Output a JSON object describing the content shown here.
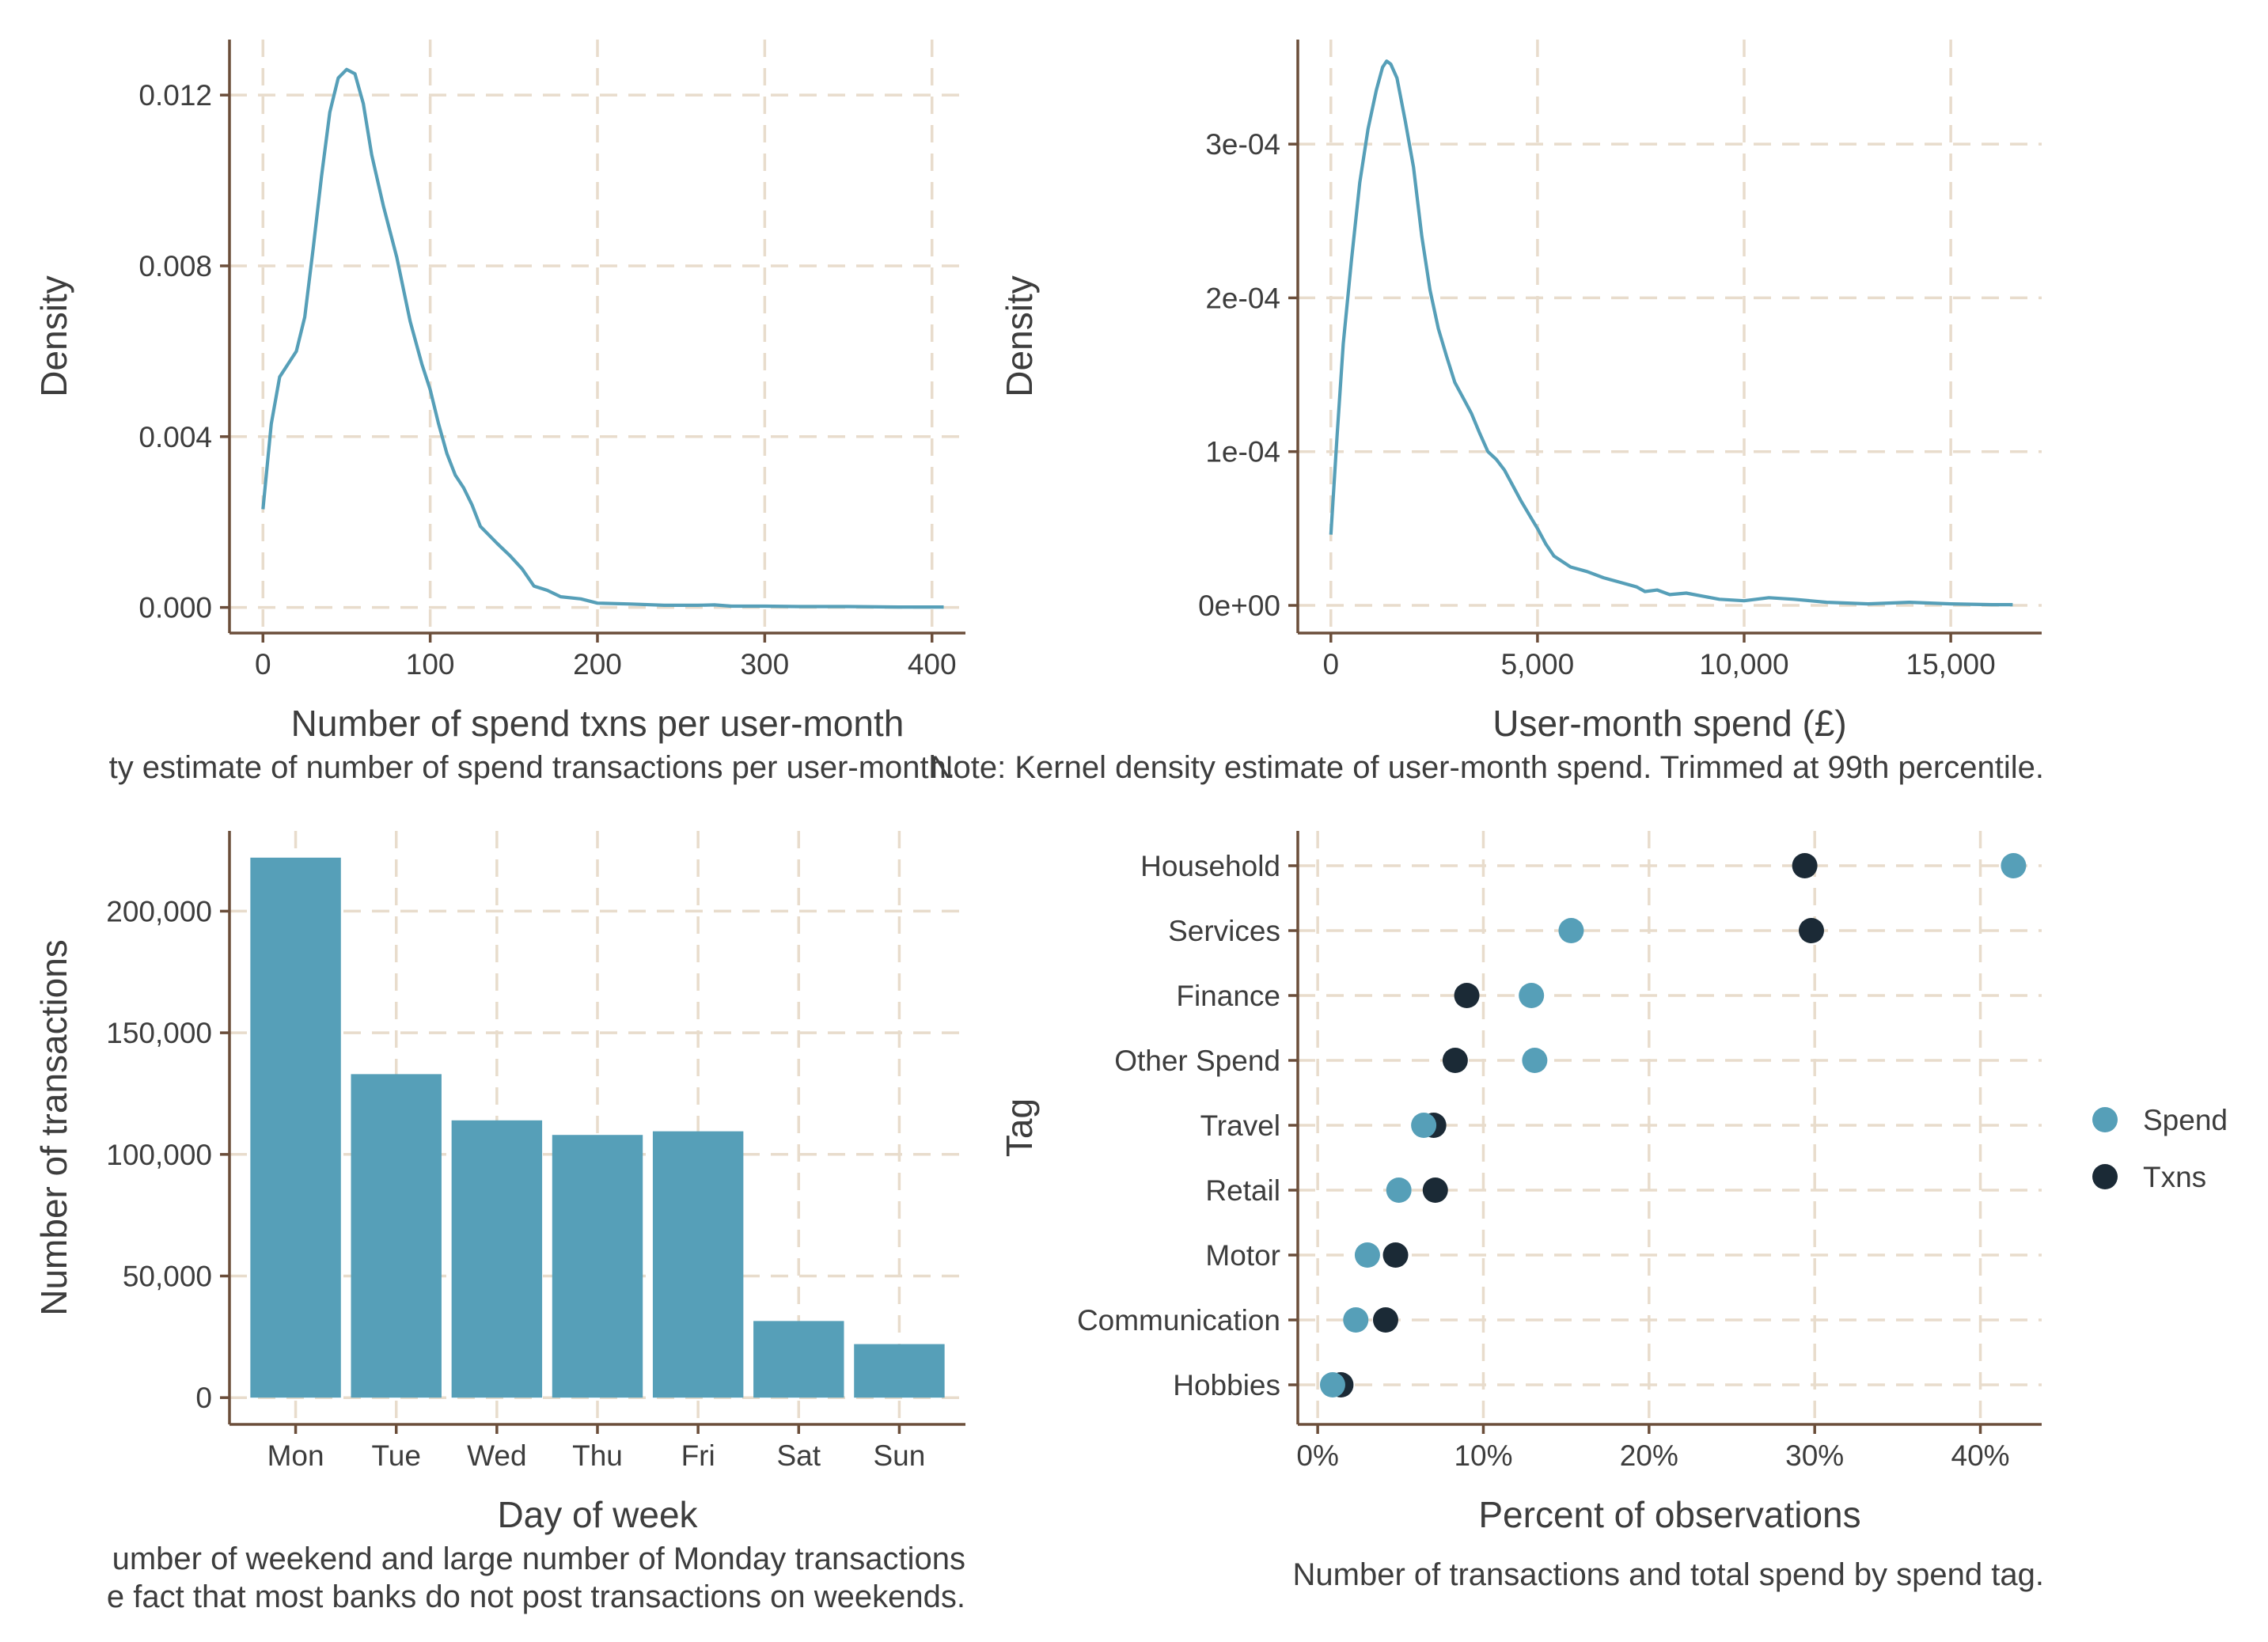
{
  "colors": {
    "spend": "#569fb8",
    "txns": "#1b2a36",
    "axis": "#6b4e3a",
    "grid": "#e8dccc",
    "text": "#3d3d3d"
  },
  "chart_data": [
    {
      "id": "txn-density",
      "type": "line",
      "xlabel": "Number of spend txns per user-month",
      "ylabel": "Density",
      "caption": "ty estimate of number of spend transactions per user-month.",
      "xlim": [
        -20,
        420
      ],
      "ylim": [
        -0.0006,
        0.0133
      ],
      "x_ticks": [
        0,
        100,
        200,
        300,
        400
      ],
      "x_tick_labels": [
        "0",
        "100",
        "200",
        "300",
        "400"
      ],
      "y_ticks": [
        0,
        0.004,
        0.008,
        0.012
      ],
      "y_tick_labels": [
        "0.000",
        "0.004",
        "0.008",
        "0.012"
      ],
      "grid": true,
      "series": [
        {
          "color": "#569fb8",
          "points": [
            [
              0,
              0.0023
            ],
            [
              5,
              0.0043
            ],
            [
              10,
              0.0054
            ],
            [
              20,
              0.006
            ],
            [
              25,
              0.0068
            ],
            [
              30,
              0.0084
            ],
            [
              35,
              0.0101
            ],
            [
              40,
              0.0116
            ],
            [
              45,
              0.0124
            ],
            [
              50,
              0.0126
            ],
            [
              55,
              0.0125
            ],
            [
              60,
              0.0118
            ],
            [
              65,
              0.0106
            ],
            [
              72,
              0.0094
            ],
            [
              80,
              0.0082
            ],
            [
              88,
              0.0067
            ],
            [
              95,
              0.0057
            ],
            [
              100,
              0.0051
            ],
            [
              105,
              0.0043
            ],
            [
              110,
              0.0036
            ],
            [
              115,
              0.0031
            ],
            [
              120,
              0.0028
            ],
            [
              125,
              0.0024
            ],
            [
              130,
              0.0019
            ],
            [
              140,
              0.0015
            ],
            [
              148,
              0.0012
            ],
            [
              155,
              0.0009
            ],
            [
              162,
              0.0005
            ],
            [
              170,
              0.0004
            ],
            [
              178,
              0.00025
            ],
            [
              190,
              0.0002
            ],
            [
              200,
              0.0001
            ],
            [
              220,
              8e-05
            ],
            [
              240,
              5e-05
            ],
            [
              260,
              5e-05
            ],
            [
              270,
              6e-05
            ],
            [
              280,
              3e-05
            ],
            [
              300,
              3e-05
            ],
            [
              320,
              2e-05
            ],
            [
              350,
              2e-05
            ],
            [
              380,
              1e-05
            ],
            [
              407,
              1e-05
            ]
          ]
        }
      ]
    },
    {
      "id": "spend-density",
      "type": "line",
      "xlabel": "User-month spend (£)",
      "ylabel": "Density",
      "caption": "Note: Kernel density estimate of user-month spend. Trimmed at 99th percentile.",
      "xlim": [
        -800,
        17200
      ],
      "ylim": [
        -1.8e-05,
        0.000368
      ],
      "x_ticks": [
        0,
        5000,
        10000,
        15000
      ],
      "x_tick_labels": [
        "0",
        "5,000",
        "10,000",
        "15,000"
      ],
      "y_ticks": [
        0,
        0.0001,
        0.0002,
        0.0003
      ],
      "y_tick_labels": [
        "0e+00",
        "1e-04",
        "2e-04",
        "3e-04"
      ],
      "grid": true,
      "series": [
        {
          "color": "#569fb8",
          "points": [
            [
              0,
              4.6e-05
            ],
            [
              150,
              0.00011
            ],
            [
              300,
              0.00017
            ],
            [
              500,
              0.000225
            ],
            [
              700,
              0.000275
            ],
            [
              900,
              0.00031
            ],
            [
              1100,
              0.000335
            ],
            [
              1250,
              0.00035
            ],
            [
              1350,
              0.000354
            ],
            [
              1450,
              0.000352
            ],
            [
              1600,
              0.000343
            ],
            [
              1800,
              0.000315
            ],
            [
              2000,
              0.000285
            ],
            [
              2200,
              0.00024
            ],
            [
              2400,
              0.000205
            ],
            [
              2600,
              0.00018
            ],
            [
              2800,
              0.000162
            ],
            [
              3000,
              0.000145
            ],
            [
              3200,
              0.000135
            ],
            [
              3400,
              0.000125
            ],
            [
              3600,
              0.000112
            ],
            [
              3800,
              0.0001
            ],
            [
              4000,
              9.5e-05
            ],
            [
              4200,
              8.8e-05
            ],
            [
              4400,
              7.8e-05
            ],
            [
              4600,
              6.8e-05
            ],
            [
              4800,
              5.9e-05
            ],
            [
              5000,
              5e-05
            ],
            [
              5200,
              4e-05
            ],
            [
              5400,
              3.2e-05
            ],
            [
              5800,
              2.5e-05
            ],
            [
              6200,
              2.2e-05
            ],
            [
              6600,
              1.8e-05
            ],
            [
              7000,
              1.5e-05
            ],
            [
              7400,
              1.2e-05
            ],
            [
              7600,
              9e-06
            ],
            [
              7900,
              1e-05
            ],
            [
              8200,
              7e-06
            ],
            [
              8600,
              8e-06
            ],
            [
              9000,
              6e-06
            ],
            [
              9400,
              4e-06
            ],
            [
              10000,
              3e-06
            ],
            [
              10600,
              5e-06
            ],
            [
              11200,
              4e-06
            ],
            [
              12000,
              2e-06
            ],
            [
              13000,
              1e-06
            ],
            [
              14000,
              2e-06
            ],
            [
              15000,
              1e-06
            ],
            [
              16000,
              5e-07
            ],
            [
              16500,
              5e-07
            ]
          ]
        }
      ]
    },
    {
      "id": "day-of-week",
      "type": "bar",
      "xlabel": "Day of week",
      "ylabel": "Number of transactions",
      "caption_lines": [
        "umber of weekend and large number of Monday transactions",
        "e fact that most banks do not post transactions on weekends."
      ],
      "categories": [
        "Mon",
        "Tue",
        "Wed",
        "Thu",
        "Fri",
        "Sat",
        "Sun"
      ],
      "values": [
        222000,
        133000,
        114000,
        108000,
        109500,
        31500,
        22000
      ],
      "ylim": [
        -11000,
        233000
      ],
      "y_ticks": [
        0,
        50000,
        100000,
        150000,
        200000
      ],
      "y_tick_labels": [
        "0",
        "50,000",
        "100,000",
        "150,000",
        "200,000"
      ],
      "color": "#569fb8",
      "grid": true
    },
    {
      "id": "spend-tag",
      "type": "scatter",
      "xlabel": "Percent of observations",
      "ylabel": "Tag",
      "caption": "Number of transactions and total spend by spend tag.",
      "categories": [
        "Household",
        "Services",
        "Finance",
        "Other Spend",
        "Travel",
        "Retail",
        "Motor",
        "Communication",
        "Hobbies"
      ],
      "xlim": [
        -1.2,
        43.7
      ],
      "x_ticks": [
        0,
        10,
        20,
        30,
        40
      ],
      "x_tick_labels": [
        "0%",
        "10%",
        "20%",
        "30%",
        "40%"
      ],
      "grid": true,
      "legend_position": "right",
      "series": [
        {
          "name": "Txns",
          "color": "#1b2a36",
          "values": [
            29.4,
            29.8,
            9.0,
            8.3,
            7.0,
            7.1,
            4.7,
            4.1,
            1.4
          ]
        },
        {
          "name": "Spend",
          "color": "#569fb8",
          "values": [
            42.0,
            15.3,
            12.9,
            13.1,
            6.4,
            4.9,
            3.0,
            2.3,
            0.9
          ]
        }
      ],
      "legend": [
        {
          "name": "Spend",
          "color": "#569fb8"
        },
        {
          "name": "Txns",
          "color": "#1b2a36"
        }
      ]
    }
  ]
}
